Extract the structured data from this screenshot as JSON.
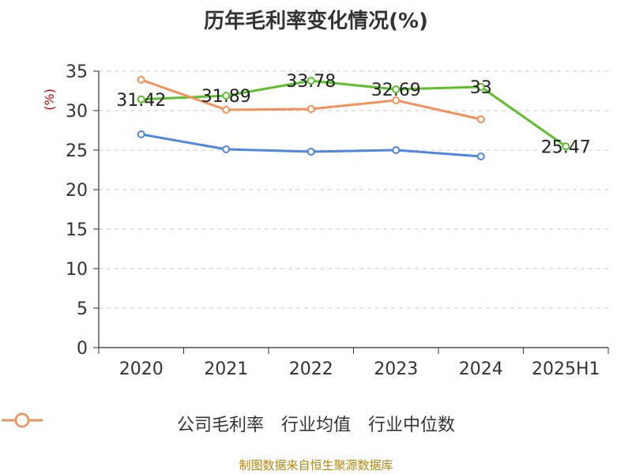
{
  "title": "历年毛利率变化情况(%)",
  "source": "制图数据来自恒生聚源数据库",
  "chart_data": {
    "type": "line",
    "categories": [
      "2020",
      "2021",
      "2022",
      "2023",
      "2024",
      "2025H1"
    ],
    "ylabel": "(%)",
    "ylim": [
      0,
      35
    ],
    "yticks": [
      0,
      5,
      10,
      15,
      20,
      25,
      30,
      35
    ],
    "grid": true,
    "legend_position": "bottom",
    "series": [
      {
        "name": "公司毛利率",
        "color": "#5cc02a",
        "values": [
          31.42,
          31.89,
          33.78,
          32.69,
          33,
          25.47
        ],
        "labels": [
          "31.42",
          "31.89",
          "33.78",
          "32.69",
          "33",
          "25.47"
        ]
      },
      {
        "name": "行业均值",
        "color": "#4f86e0",
        "values": [
          27.0,
          25.1,
          24.8,
          25.0,
          24.2,
          null
        ]
      },
      {
        "name": "行业中位数",
        "color": "#f4905a",
        "values": [
          33.9,
          30.1,
          30.2,
          31.3,
          28.9,
          null
        ]
      }
    ]
  }
}
